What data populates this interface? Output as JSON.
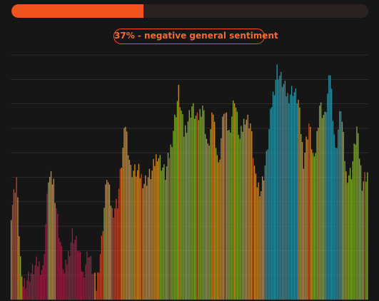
{
  "progress": {
    "percent": 37,
    "color": "#f0531c",
    "track_color": "#2a2222"
  },
  "sentiment_badge": {
    "text": "37% - negative general sentiment",
    "color": "#f0531c"
  },
  "chart_data": {
    "type": "bar",
    "title": "",
    "xlabel": "",
    "ylabel": "",
    "grid": true,
    "legend": "none",
    "ylim": [
      0,
      100
    ],
    "color_key": [
      "#8f2240",
      "#b8452b",
      "#c9892a",
      "#7fa82c",
      "#2e8fa0"
    ],
    "anchors": [
      [
        0,
        36
      ],
      [
        4,
        50
      ],
      [
        8,
        6
      ],
      [
        14,
        10
      ],
      [
        20,
        15
      ],
      [
        24,
        12
      ],
      [
        28,
        50
      ],
      [
        32,
        48
      ],
      [
        36,
        28
      ],
      [
        40,
        10
      ],
      [
        46,
        27
      ],
      [
        50,
        22
      ],
      [
        54,
        10
      ],
      [
        58,
        20
      ],
      [
        60,
        15
      ],
      [
        64,
        5
      ],
      [
        68,
        24
      ],
      [
        72,
        51
      ],
      [
        76,
        36
      ],
      [
        80,
        40
      ],
      [
        86,
        72
      ],
      [
        90,
        53
      ],
      [
        96,
        52
      ],
      [
        100,
        48
      ],
      [
        106,
        52
      ],
      [
        110,
        60
      ],
      [
        116,
        51
      ],
      [
        120,
        62
      ],
      [
        126,
        85
      ],
      [
        130,
        68
      ],
      [
        136,
        79
      ],
      [
        140,
        73
      ],
      [
        144,
        80
      ],
      [
        148,
        61
      ],
      [
        152,
        77
      ],
      [
        156,
        54
      ],
      [
        160,
        78
      ],
      [
        164,
        68
      ],
      [
        168,
        83
      ],
      [
        172,
        65
      ],
      [
        176,
        75
      ],
      [
        180,
        72
      ],
      [
        184,
        48
      ],
      [
        188,
        45
      ],
      [
        192,
        58
      ],
      [
        196,
        80
      ],
      [
        200,
        94
      ],
      [
        204,
        89
      ],
      [
        208,
        83
      ],
      [
        212,
        86
      ],
      [
        216,
        81
      ],
      [
        220,
        57
      ],
      [
        224,
        72
      ],
      [
        228,
        55
      ],
      [
        232,
        80
      ],
      [
        236,
        74
      ],
      [
        240,
        93
      ],
      [
        244,
        60
      ],
      [
        248,
        79
      ],
      [
        252,
        51
      ],
      [
        256,
        52
      ],
      [
        260,
        70
      ],
      [
        264,
        48
      ],
      [
        268,
        52
      ]
    ],
    "color_segments": [
      [
        0,
        4,
        1
      ],
      [
        5,
        8,
        2
      ],
      [
        9,
        27,
        0
      ],
      [
        28,
        33,
        2
      ],
      [
        34,
        48,
        0
      ],
      [
        49,
        55,
        0
      ],
      [
        56,
        62,
        0
      ],
      [
        63,
        69,
        1
      ],
      [
        70,
        75,
        2
      ],
      [
        76,
        82,
        1
      ],
      [
        83,
        92,
        2
      ],
      [
        93,
        112,
        2
      ],
      [
        113,
        124,
        3
      ],
      [
        125,
        135,
        3
      ],
      [
        136,
        150,
        3
      ],
      [
        151,
        162,
        2
      ],
      [
        163,
        175,
        3
      ],
      [
        176,
        190,
        2
      ],
      [
        191,
        200,
        4
      ],
      [
        201,
        215,
        4
      ],
      [
        216,
        226,
        2
      ],
      [
        227,
        236,
        3
      ],
      [
        237,
        248,
        4
      ],
      [
        249,
        268,
        3
      ]
    ]
  }
}
